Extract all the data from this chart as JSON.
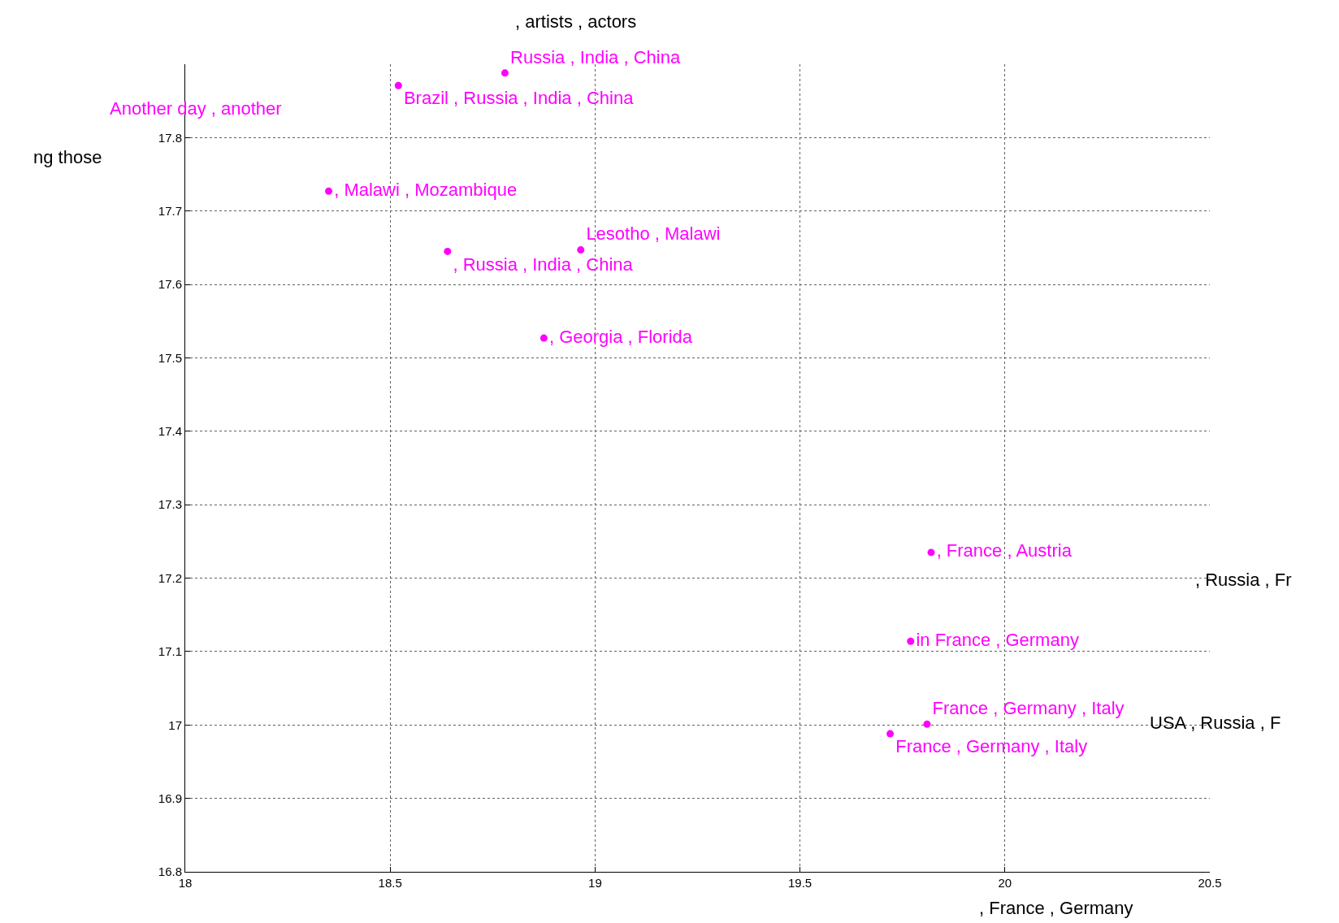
{
  "chart_data": {
    "type": "scatter",
    "title": ", artists , actors",
    "xlabel": ", France , Germany",
    "ylabel": "ng those",
    "x": [
      18.78,
      18.52,
      18.35,
      18.64,
      18.965,
      18.875,
      19.82,
      19.77,
      19.81,
      19.72
    ],
    "values": [
      17.888,
      17.871,
      17.727,
      17.645,
      17.647,
      17.527,
      17.235,
      17.114,
      17.001,
      16.988
    ],
    "value_labels": [
      "Russia , India , China",
      "Brazil , Russia , India , China",
      ", Malawi , Mozambique",
      ", Russia , India , China",
      "Lesotho , Malawi",
      ", Georgia , Florida",
      ", France , Austria",
      "in France , Germany",
      "France , Germany , Italy",
      "France , Germany , Italy"
    ],
    "color": "#ff00ff",
    "marker": "circle",
    "annotations": [
      "Another day , another",
      ", Russia , Fr",
      "USA , Russia , F"
    ],
    "xlim": [
      18,
      20.5
    ],
    "xticks": [
      18,
      18.5,
      19,
      19.5,
      20,
      20.5
    ],
    "ylim": [
      16.8,
      17.9
    ],
    "yticks": [
      16.8,
      16.9,
      17,
      17.1,
      17.2,
      17.3,
      17.4,
      17.5,
      17.6,
      17.7,
      17.8
    ],
    "grid": true
  }
}
